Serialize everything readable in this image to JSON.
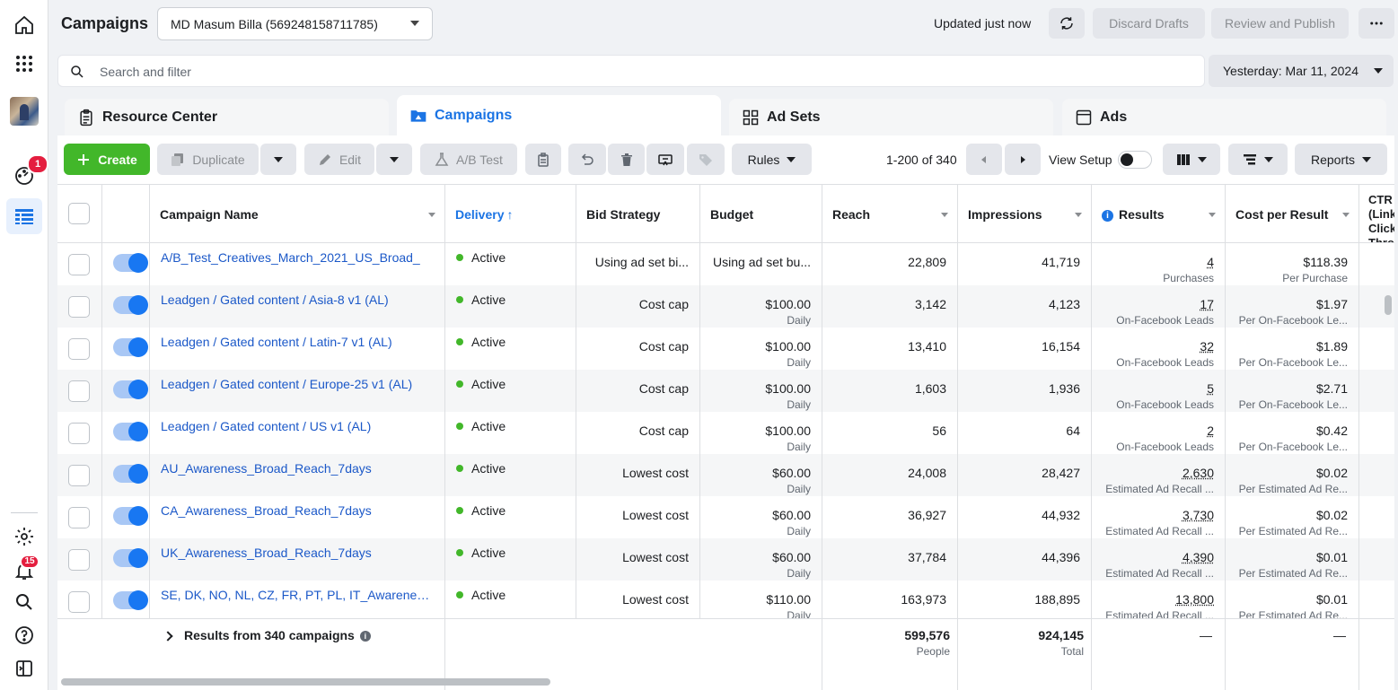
{
  "rail": {
    "notifications_badge": "1",
    "alerts_badge": "15"
  },
  "header": {
    "title": "Campaigns",
    "account": "MD Masum Billa (569248158711785)",
    "updated": "Updated just now",
    "discard_label": "Discard Drafts",
    "review_label": "Review and Publish"
  },
  "search": {
    "placeholder": "Search and filter",
    "date_range": "Yesterday: Mar 11, 2024"
  },
  "tabs": [
    {
      "label": "Resource Center"
    },
    {
      "label": "Campaigns"
    },
    {
      "label": "Ad Sets"
    },
    {
      "label": "Ads"
    }
  ],
  "toolbar": {
    "create": "Create",
    "duplicate": "Duplicate",
    "edit": "Edit",
    "ab_test": "A/B Test",
    "rules": "Rules",
    "page_count": "1-200 of 340",
    "view_setup": "View Setup",
    "reports": "Reports"
  },
  "columns": {
    "name": "Campaign Name",
    "delivery": "Delivery",
    "bid": "Bid Strategy",
    "budget": "Budget",
    "reach": "Reach",
    "impressions": "Impressions",
    "results": "Results",
    "cpr": "Cost per Result",
    "ctr": "CTR (Link Click-Through Rate)"
  },
  "rows": [
    {
      "name": "A/B_Test_Creatives_March_2021_US_Broad_",
      "delivery": "Active",
      "bid": "Using ad set bi...",
      "budget": "Using ad set bu...",
      "budget_sub": "",
      "reach": "22,809",
      "impressions": "41,719",
      "results": "4",
      "results_sub": "Purchases",
      "cpr": "$118.39",
      "cpr_sub": "Per Purchase"
    },
    {
      "name": "Leadgen / Gated content / Asia-8 v1 (AL)",
      "delivery": "Active",
      "bid": "Cost cap",
      "budget": "$100.00",
      "budget_sub": "Daily",
      "reach": "3,142",
      "impressions": "4,123",
      "results": "17",
      "results_sub": "On-Facebook Leads",
      "cpr": "$1.97",
      "cpr_sub": "Per On-Facebook Le..."
    },
    {
      "name": "Leadgen / Gated content / Latin-7 v1 (AL)",
      "delivery": "Active",
      "bid": "Cost cap",
      "budget": "$100.00",
      "budget_sub": "Daily",
      "reach": "13,410",
      "impressions": "16,154",
      "results": "32",
      "results_sub": "On-Facebook Leads",
      "cpr": "$1.89",
      "cpr_sub": "Per On-Facebook Le..."
    },
    {
      "name": "Leadgen / Gated content / Europe-25 v1 (AL)",
      "delivery": "Active",
      "bid": "Cost cap",
      "budget": "$100.00",
      "budget_sub": "Daily",
      "reach": "1,603",
      "impressions": "1,936",
      "results": "5",
      "results_sub": "On-Facebook Leads",
      "cpr": "$2.71",
      "cpr_sub": "Per On-Facebook Le..."
    },
    {
      "name": "Leadgen / Gated content / US v1 (AL)",
      "delivery": "Active",
      "bid": "Cost cap",
      "budget": "$100.00",
      "budget_sub": "Daily",
      "reach": "56",
      "impressions": "64",
      "results": "2",
      "results_sub": "On-Facebook Leads",
      "cpr": "$0.42",
      "cpr_sub": "Per On-Facebook Le..."
    },
    {
      "name": "AU_Awareness_Broad_Reach_7days",
      "delivery": "Active",
      "bid": "Lowest cost",
      "budget": "$60.00",
      "budget_sub": "Daily",
      "reach": "24,008",
      "impressions": "28,427",
      "results": "2,630",
      "results_sub": "Estimated Ad Recall ...",
      "cpr": "$0.02",
      "cpr_sub": "Per Estimated Ad Re..."
    },
    {
      "name": "CA_Awareness_Broad_Reach_7days",
      "delivery": "Active",
      "bid": "Lowest cost",
      "budget": "$60.00",
      "budget_sub": "Daily",
      "reach": "36,927",
      "impressions": "44,932",
      "results": "3,730",
      "results_sub": "Estimated Ad Recall ...",
      "cpr": "$0.02",
      "cpr_sub": "Per Estimated Ad Re..."
    },
    {
      "name": "UK_Awareness_Broad_Reach_7days",
      "delivery": "Active",
      "bid": "Lowest cost",
      "budget": "$60.00",
      "budget_sub": "Daily",
      "reach": "37,784",
      "impressions": "44,396",
      "results": "4,390",
      "results_sub": "Estimated Ad Recall ...",
      "cpr": "$0.01",
      "cpr_sub": "Per Estimated Ad Re..."
    },
    {
      "name": "SE, DK, NO, NL, CZ, FR, PT, PL, IT_Awareness_",
      "delivery": "Active",
      "bid": "Lowest cost",
      "budget": "$110.00",
      "budget_sub": "Daily",
      "reach": "163,973",
      "impressions": "188,895",
      "results": "13,800",
      "results_sub": "Estimated Ad Recall ...",
      "cpr": "$0.01",
      "cpr_sub": "Per Estimated Ad Re..."
    }
  ],
  "totals": {
    "label": "Results from 340 campaigns",
    "reach": "599,576",
    "reach_sub": "People",
    "impressions": "924,145",
    "impressions_sub": "Total",
    "results": "—",
    "cpr": "—"
  },
  "colors": {
    "accent": "#1b74e4",
    "create": "#42b72a",
    "active_dot": "#42b72a",
    "badge": "#e41e3f"
  }
}
